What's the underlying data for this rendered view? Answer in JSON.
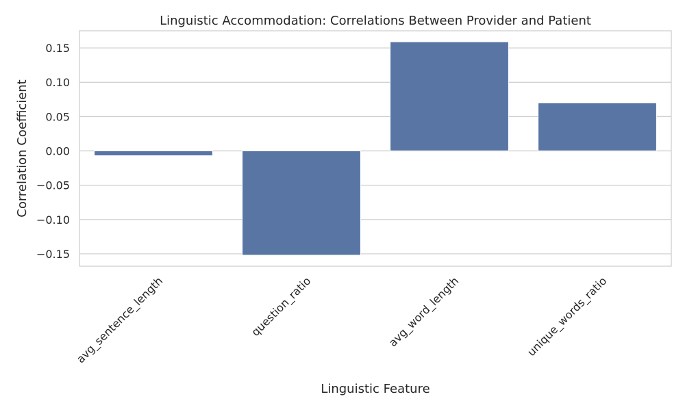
{
  "chart_data": {
    "type": "bar",
    "title": "Linguistic Accommodation: Correlations Between Provider and Patient",
    "xlabel": "Linguistic Feature",
    "ylabel": "Correlation Coefficient",
    "categories": [
      "avg_sentence_length",
      "question_ratio",
      "avg_word_length",
      "unique_words_ratio"
    ],
    "values": [
      -0.007,
      -0.152,
      0.159,
      0.07
    ],
    "ylim": [
      -0.168,
      0.175
    ],
    "yticks": [
      -0.15,
      -0.1,
      -0.05,
      0.0,
      0.05,
      0.1,
      0.15
    ],
    "ytick_labels": [
      "−0.15",
      "−0.10",
      "−0.05",
      "0.00",
      "0.05",
      "0.10",
      "0.15"
    ],
    "bar_color": "#5875a4",
    "grid": true,
    "grid_color": "#cccccc",
    "xtick_rotation": 45
  }
}
